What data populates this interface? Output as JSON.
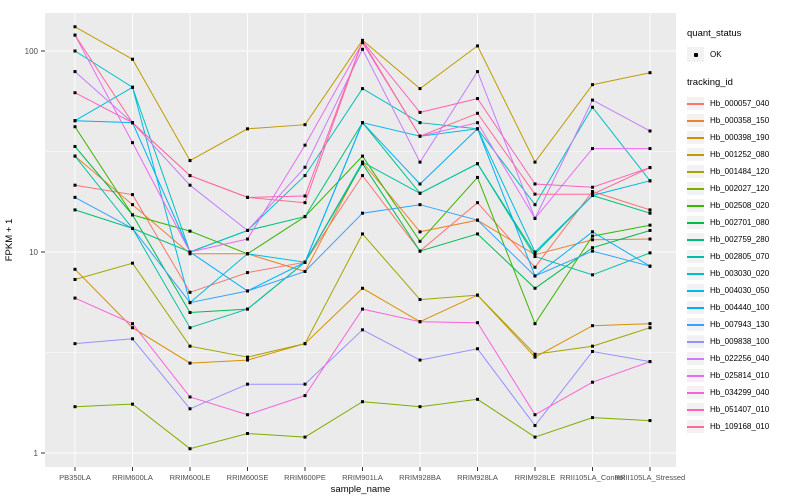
{
  "figure": {
    "y_axis": {
      "title": "FPKM + 1",
      "tick_labels": [
        "100",
        "10",
        "1"
      ]
    },
    "x_axis": {
      "title": "sample_name"
    },
    "legend": {
      "quant_status": {
        "title": "quant_status",
        "items": [
          {
            "label": "OK",
            "marker": "black-point"
          }
        ]
      },
      "tracking": {
        "title": "tracking_id"
      }
    },
    "colors": {
      "panel_bg": "#EBEBEB",
      "grid": "#FFFFFF",
      "axis_text": "#4D4D4D",
      "axis_title": "#000000",
      "tick_mark": "#333333",
      "point": "#000000",
      "legend_key_bg": "#F2F2F2"
    }
  },
  "chart_data": {
    "type": "line",
    "title": "",
    "xlabel": "sample_name",
    "ylabel": "FPKM + 1",
    "y_scale": "log10",
    "ylim": [
      0.9,
      155
    ],
    "y_ticks": [
      1,
      10,
      100
    ],
    "y_minor_ticks": [
      3.162,
      31.62
    ],
    "grid": true,
    "legend_position": "right",
    "point_marker": "black-square",
    "categories": [
      "PB350LA",
      "RRIM600LA",
      "RRIM600LE",
      "RRIM600SE",
      "RRIM600PE",
      "RRIM901LA",
      "RRIM928BA",
      "RRIM928LA",
      "RRIM928LE",
      "RRII105LA_Control",
      "RRII105LA_Stressed"
    ],
    "series": [
      {
        "name": "Hb_000057_040",
        "color": "#F8766D",
        "quant_status": "OK",
        "values": [
          21.5,
          19.3,
          6.3,
          7.9,
          8.9,
          24,
          10.1,
          17.6,
          8.4,
          20,
          16.2
        ]
      },
      {
        "name": "Hb_000358_150",
        "color": "#EA8331",
        "quant_status": "OK",
        "values": [
          30,
          17.2,
          9.8,
          9.8,
          8.0,
          28,
          12.6,
          14.4,
          9.7,
          11.5,
          11.6
        ]
      },
      {
        "name": "Hb_000398_190",
        "color": "#D89000",
        "quant_status": "OK",
        "values": [
          8.2,
          4.2,
          2.8,
          2.9,
          3.5,
          6.6,
          4.5,
          6.1,
          3.0,
          4.3,
          4.4
        ]
      },
      {
        "name": "Hb_001252_080",
        "color": "#C09B00",
        "quant_status": "OK",
        "values": [
          132,
          91,
          28.5,
          41,
          43,
          113,
          65,
          106,
          28,
          68,
          78
        ]
      },
      {
        "name": "Hb_001484_120",
        "color": "#A3A500",
        "quant_status": "OK",
        "values": [
          7.3,
          8.8,
          3.4,
          3.0,
          3.5,
          12.3,
          5.8,
          6.1,
          3.1,
          3.4,
          4.2
        ]
      },
      {
        "name": "Hb_002027_120",
        "color": "#7CAE00",
        "quant_status": "OK",
        "values": [
          1.7,
          1.75,
          1.05,
          1.25,
          1.2,
          1.8,
          1.7,
          1.85,
          1.2,
          1.5,
          1.45
        ]
      },
      {
        "name": "Hb_002508_020",
        "color": "#39B600",
        "quant_status": "OK",
        "values": [
          42,
          15.3,
          12.7,
          9.8,
          15,
          30,
          11.3,
          23.5,
          4.4,
          12,
          13.6
        ]
      },
      {
        "name": "Hb_002701_080",
        "color": "#00BB4E",
        "quant_status": "OK",
        "values": [
          33.5,
          15.3,
          5.0,
          5.2,
          8.9,
          27.5,
          10.1,
          12.3,
          6.6,
          10.5,
          12.8
        ]
      },
      {
        "name": "Hb_002759_280",
        "color": "#00BF7D",
        "quant_status": "OK",
        "values": [
          16.2,
          13.1,
          10.0,
          12.8,
          15,
          44,
          19.6,
          27.5,
          9.8,
          19.1,
          15.6
        ]
      },
      {
        "name": "Hb_002805_070",
        "color": "#00C1A3",
        "quant_status": "OK",
        "values": [
          30,
          13.1,
          4.2,
          5.2,
          8.9,
          28,
          19.6,
          27.5,
          9.5,
          7.7,
          9.9
        ]
      },
      {
        "name": "Hb_003030_020",
        "color": "#00BFC4",
        "quant_status": "OK",
        "values": [
          100,
          66,
          10,
          12.8,
          24,
          65,
          44,
          41,
          17.2,
          52.5,
          22.6
        ]
      },
      {
        "name": "Hb_004030_050",
        "color": "#00BAE0",
        "quant_status": "OK",
        "values": [
          45,
          66,
          5.6,
          9.8,
          8.9,
          44,
          37.7,
          41,
          10,
          19.1,
          22.6
        ]
      },
      {
        "name": "Hb_004440_100",
        "color": "#00B0F6",
        "quant_status": "OK",
        "values": [
          45,
          44,
          10,
          6.4,
          8.9,
          44,
          21.8,
          41,
          7.6,
          12.6,
          8.5
        ]
      },
      {
        "name": "Hb_007943_130",
        "color": "#35A2FF",
        "quant_status": "OK",
        "values": [
          18.7,
          13.1,
          5.6,
          6.4,
          8.0,
          15.6,
          17.2,
          14.4,
          7.6,
          10.1,
          8.5
        ]
      },
      {
        "name": "Hb_009838_100",
        "color": "#9590FF",
        "quant_status": "OK",
        "values": [
          3.5,
          3.7,
          1.66,
          2.2,
          2.2,
          4.1,
          2.9,
          3.3,
          1.37,
          3.2,
          2.85
        ]
      },
      {
        "name": "Hb_022256_040",
        "color": "#C77CFF",
        "quant_status": "OK",
        "values": [
          79,
          44,
          21.5,
          12.8,
          26.4,
          102,
          28,
          79,
          14.7,
          57,
          40
        ]
      },
      {
        "name": "Hb_025814_010",
        "color": "#E76BF3",
        "quant_status": "OK",
        "values": [
          120,
          35,
          10,
          11.6,
          34,
          110,
          37.7,
          44,
          14.7,
          32.7,
          32.7
        ]
      },
      {
        "name": "Hb_034299_040",
        "color": "#FA62DB",
        "quant_status": "OK",
        "values": [
          5.9,
          4.4,
          1.9,
          1.55,
          1.93,
          5.2,
          4.5,
          4.45,
          1.55,
          2.25,
          2.85
        ]
      },
      {
        "name": "Hb_051407_010",
        "color": "#FF62BC",
        "quant_status": "OK",
        "values": [
          62,
          44,
          24,
          18.7,
          19,
          112,
          49.5,
          58,
          21.8,
          21,
          26.3
        ]
      },
      {
        "name": "Hb_109168_010",
        "color": "#FF6A98",
        "quant_status": "OK",
        "values": [
          120,
          44,
          24,
          18.7,
          17.6,
          112,
          37.7,
          49,
          19.4,
          19.4,
          26.3
        ]
      }
    ]
  }
}
